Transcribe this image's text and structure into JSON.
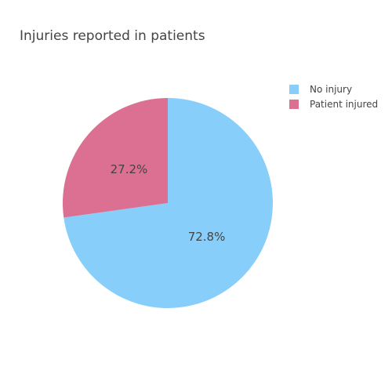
{
  "chart_data": {
    "type": "pie",
    "title": "Injuries reported in patients",
    "slices": [
      {
        "label": "No injury",
        "value": 72.8,
        "text": "72.8%",
        "color": "#87CEFA"
      },
      {
        "label": "Patient injured",
        "value": 27.2,
        "text": "27.2%",
        "color": "#DB7093"
      }
    ],
    "legend_position": "top-right",
    "direction": "clockwise",
    "start": "top"
  }
}
